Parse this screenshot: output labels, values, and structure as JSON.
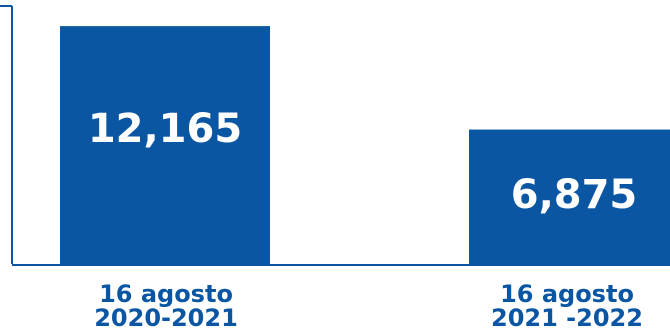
{
  "chart_data": {
    "type": "bar",
    "categories": [
      {
        "line1": "16 agosto",
        "line2": "2020-2021"
      },
      {
        "line1": "16 agosto",
        "line2": "2021 -2022"
      }
    ],
    "values": [
      12165,
      6875
    ],
    "value_labels": [
      "12,165",
      "6,875"
    ],
    "title": "",
    "xlabel": "",
    "ylabel": "",
    "ylim": [
      0,
      13500
    ],
    "grid": false,
    "legend": "none",
    "colors": {
      "bar": "#0a56a3",
      "bar_label": "#ffffff",
      "axis": "#0a56a3",
      "category_label": "#0a56a3"
    }
  }
}
